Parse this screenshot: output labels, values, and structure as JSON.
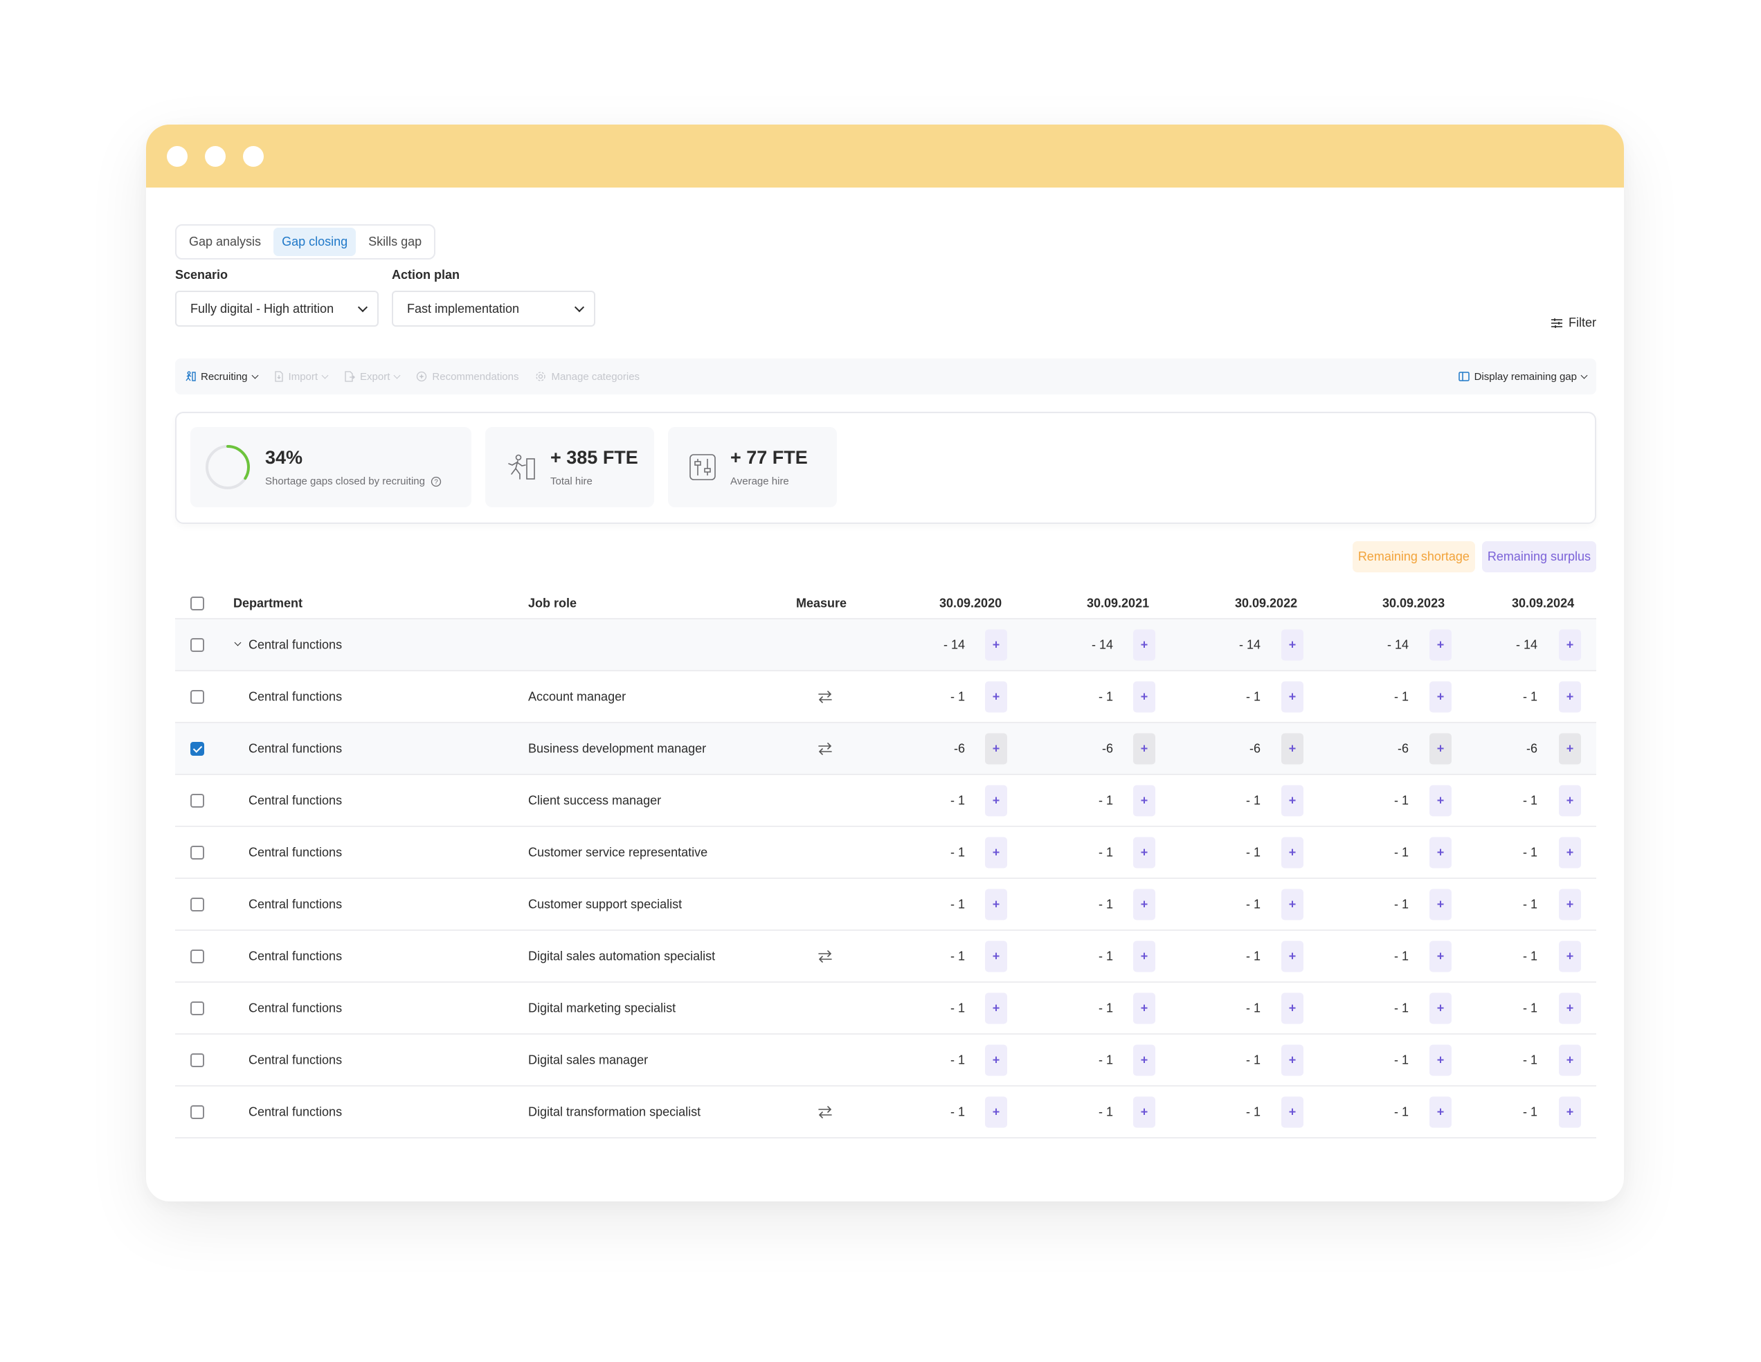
{
  "tabs": [
    "Gap analysis",
    "Gap closing",
    "Skills gap"
  ],
  "active_tab": 1,
  "scenario": {
    "label": "Scenario",
    "value": "Fully digital - High attrition"
  },
  "action_plan": {
    "label": "Action plan",
    "value": "Fast implementation"
  },
  "filter_label": "Filter",
  "toolbar": {
    "recruiting": "Recruiting",
    "import": "Import",
    "export": "Export",
    "recommendations": "Recommendations",
    "manage_categories": "Manage categories",
    "display": "Display remaining gap"
  },
  "kpis": {
    "closed": {
      "value": "34%",
      "label": "Shortage gaps closed by recruiting",
      "progress": 0.34
    },
    "total": {
      "value": "+ 385 FTE",
      "label": "Total hire"
    },
    "average": {
      "value": "+ 77 FTE",
      "label": "Average hire"
    }
  },
  "legend": {
    "shortage": "Remaining shortage",
    "surplus": "Remaining surplus"
  },
  "colors": {
    "accent": "#1f78c8",
    "header": "#f9d98d",
    "shortage": "#f2a33a",
    "surplus": "#7b62d8"
  },
  "table": {
    "headers": {
      "department": "Department",
      "job_role": "Job role",
      "measure": "Measure",
      "years": [
        "30.09.2020",
        "30.09.2021",
        "30.09.2022",
        "30.09.2023",
        "30.09.2024"
      ]
    },
    "group": {
      "department": "Central functions",
      "values": [
        "- 14",
        "- 14",
        "- 14",
        "- 14",
        "- 14"
      ]
    },
    "rows": [
      {
        "department": "Central functions",
        "role": "Account manager",
        "measure": true,
        "checked": false,
        "values": [
          "- 1",
          "- 1",
          "- 1",
          "- 1",
          "- 1"
        ]
      },
      {
        "department": "Central functions",
        "role": "Business development manager",
        "measure": true,
        "checked": true,
        "values": [
          "-6",
          "-6",
          "-6",
          "-6",
          "-6"
        ]
      },
      {
        "department": "Central functions",
        "role": "Client success manager",
        "measure": false,
        "checked": false,
        "values": [
          "- 1",
          "- 1",
          "- 1",
          "- 1",
          "- 1"
        ]
      },
      {
        "department": "Central functions",
        "role": "Customer service representative",
        "measure": false,
        "checked": false,
        "values": [
          "- 1",
          "- 1",
          "- 1",
          "- 1",
          "- 1"
        ]
      },
      {
        "department": "Central functions",
        "role": "Customer support specialist",
        "measure": false,
        "checked": false,
        "values": [
          "- 1",
          "- 1",
          "- 1",
          "- 1",
          "- 1"
        ]
      },
      {
        "department": "Central functions",
        "role": "Digital sales automation specialist",
        "measure": true,
        "checked": false,
        "values": [
          "- 1",
          "- 1",
          "- 1",
          "- 1",
          "- 1"
        ]
      },
      {
        "department": "Central functions",
        "role": "Digital marketing specialist",
        "measure": false,
        "checked": false,
        "values": [
          "- 1",
          "- 1",
          "- 1",
          "- 1",
          "- 1"
        ]
      },
      {
        "department": "Central functions",
        "role": "Digital sales manager",
        "measure": false,
        "checked": false,
        "values": [
          "- 1",
          "- 1",
          "- 1",
          "- 1",
          "- 1"
        ]
      },
      {
        "department": "Central functions",
        "role": "Digital transformation specialist",
        "measure": true,
        "checked": false,
        "values": [
          "- 1",
          "- 1",
          "- 1",
          "- 1",
          "- 1"
        ]
      }
    ],
    "plus_label": "+"
  }
}
